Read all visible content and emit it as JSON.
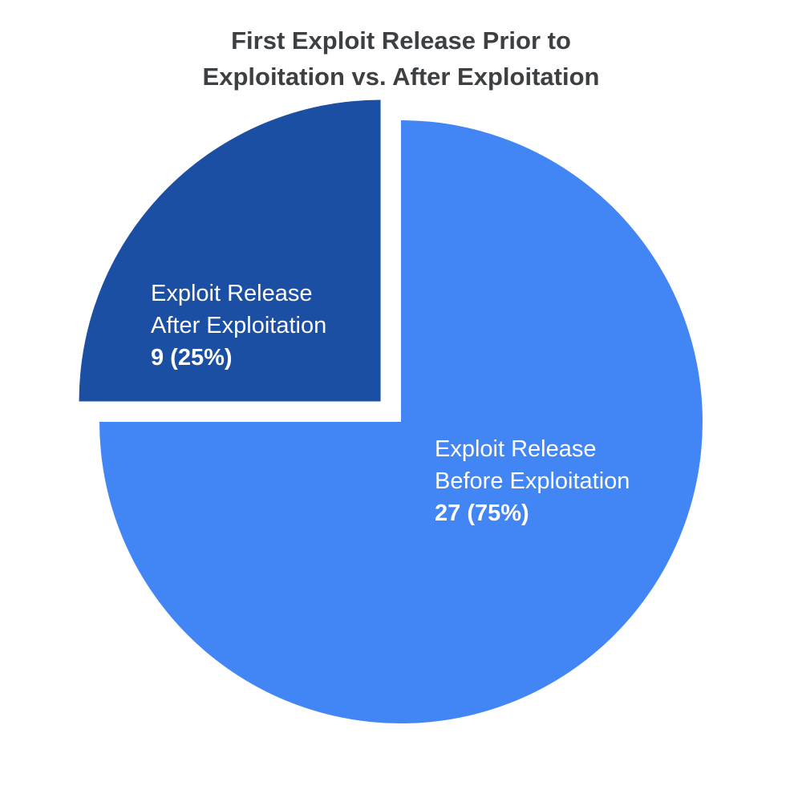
{
  "chart_data": {
    "type": "pie",
    "title_lines": [
      "First Exploit Release Prior to",
      "Exploitation vs. After Exploitation"
    ],
    "slices": [
      {
        "label_lines": [
          "Exploit Release",
          "After Exploitation"
        ],
        "value": 9,
        "value_text": "9 (25%)",
        "percent": 25,
        "color": "#1a4fa3",
        "exploded": true
      },
      {
        "label_lines": [
          "Exploit Release",
          "Before Exploitation"
        ],
        "value": 27,
        "value_text": "27 (75%)",
        "percent": 75,
        "color": "#4285f4",
        "exploded": false
      }
    ],
    "legend": "none",
    "grid": false
  }
}
